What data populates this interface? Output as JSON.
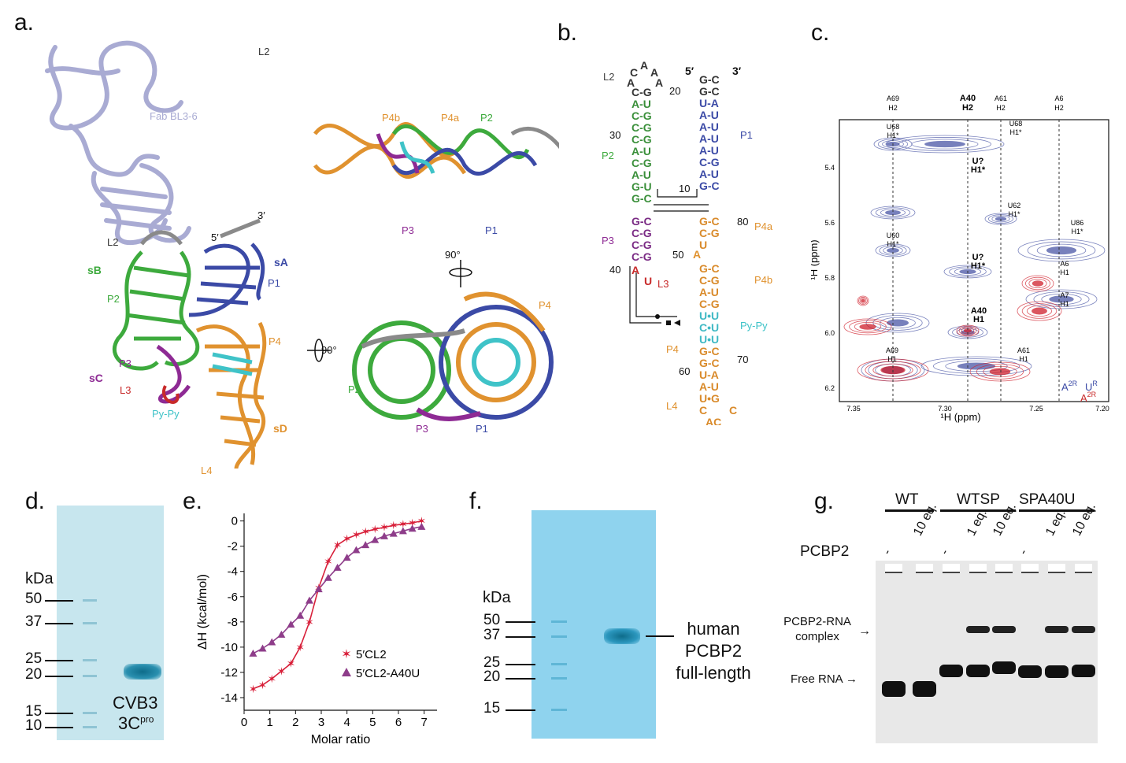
{
  "panels": {
    "a": {
      "label": "a.",
      "texts": [
        "L2",
        "Fab BL3-6",
        "3′",
        "5′",
        "L2",
        "sB",
        "sA",
        "P2",
        "P1",
        "P3",
        "P4",
        "sC",
        "L3",
        "Py-Py",
        "sD",
        "L4",
        "90°"
      ],
      "top_texts": [
        "P4b",
        "P4a",
        "P2",
        "P3",
        "P1",
        "90°"
      ],
      "bottom_texts": [
        "P4",
        "P2",
        "P3",
        "P1"
      ]
    },
    "b": {
      "label": "b.",
      "left_5p": [
        "C",
        "A",
        "A",
        "A",
        "A"
      ],
      "stem_left": [
        "C-G",
        "A-U",
        "C-G",
        "C-G",
        "C-G",
        "A-U",
        "C-G",
        "A-U",
        "G-U",
        "G-C"
      ],
      "stem_right": [
        "G-C",
        "G-C",
        "U-A",
        "A-U",
        "A-U",
        "A-U",
        "A-U",
        "C-G",
        "A-U",
        "G-C"
      ],
      "p3": [
        "G-C",
        "C-G",
        "C-G",
        "C-G",
        "A",
        "U"
      ],
      "p4": [
        "G-C",
        "C-G",
        "U",
        "A",
        "G-C",
        "C-G",
        "A-U",
        "C-G",
        "U•U",
        "C•U",
        "U•U",
        "G-C",
        "G-C",
        "U-A",
        "A-U",
        "U•G",
        "C",
        "AC",
        "C"
      ],
      "numbers": [
        "20",
        "30",
        "10",
        "80",
        "50",
        "40",
        "70",
        "60"
      ],
      "labels": [
        "L2",
        "5′",
        "3′",
        "P1",
        "P2",
        "P3",
        "L3",
        "P4a",
        "P4b",
        "Py-Py",
        "P4",
        "L4",
        "A"
      ]
    },
    "c": {
      "label": "c.",
      "columns": [
        {
          "name": "A69",
          "sub": "H2",
          "bold": false
        },
        {
          "name": "A40",
          "sub": "H2",
          "bold": true
        },
        {
          "name": "A61",
          "sub": "H2",
          "bold": false
        },
        {
          "name": "A6",
          "sub": "H2",
          "bold": false
        }
      ],
      "peaks": [
        "U68 H1*",
        "U68 H1*",
        "U? H1*",
        "U62 H1*",
        "U60 H1*",
        "U86 H1*",
        "U? H1*",
        "A6 H1",
        "A7 H1",
        "A40 H1",
        "A69 H1",
        "A61 H1"
      ],
      "xlabel": "¹H (ppm)",
      "ylabel": "¹H (ppm)",
      "xticks": [
        "7.35",
        "7.30",
        "7.25",
        "7.20"
      ],
      "yticks": [
        "5.4",
        "5.6",
        "5.8",
        "6.0",
        "6.2"
      ],
      "legend": {
        "a_blue": "A",
        "a_blue_sup": "2R",
        "u_blue": "U",
        "u_blue_sup": "R",
        "a_red": "A",
        "a_red_sup": "2R"
      },
      "colors": {
        "blue": "#4a56a6",
        "red": "#d0202c"
      }
    },
    "d": {
      "label": "d.",
      "unit": "kDa",
      "markers": [
        "50",
        "37",
        "25",
        "20",
        "15",
        "10"
      ],
      "band_label": "CVB3",
      "band_label2": "3C",
      "band_label2_sup": "pro"
    },
    "e": {
      "label": "e."
    },
    "f": {
      "label": "f.",
      "unit": "kDa",
      "markers": [
        "50",
        "37",
        "25",
        "20",
        "15"
      ],
      "annotation": [
        "human",
        "PCBP2",
        "full-length"
      ]
    },
    "g": {
      "label": "g.",
      "groups": [
        "WT",
        "WTSP",
        "SPA40U"
      ],
      "row_label": "PCBP2",
      "lanes": [
        "-",
        "10 eq.",
        "-",
        "1 eq.",
        "10 eq.",
        "-",
        "1 eq.",
        "10 eq."
      ],
      "complex_label": [
        "PCBP2-RNA",
        "complex"
      ],
      "free_label": "Free RNA"
    }
  },
  "chart_data": {
    "type": "scatter",
    "xlabel": "Molar ratio",
    "ylabel": "ΔH (kcal/mol)",
    "xlim": [
      0,
      7.5
    ],
    "ylim": [
      -15,
      0.6
    ],
    "xticks": [
      0,
      1,
      2,
      3,
      4,
      5,
      6,
      7
    ],
    "yticks": [
      0,
      -2,
      -4,
      -6,
      -8,
      -10,
      -12,
      -14
    ],
    "legend_position": "bottom-right",
    "series": [
      {
        "name": "5′CL2",
        "marker": "star",
        "color": "#d8203a",
        "x": [
          0.35,
          0.72,
          1.08,
          1.45,
          1.82,
          2.18,
          2.54,
          2.9,
          3.27,
          3.63,
          4.0,
          4.36,
          4.72,
          5.09,
          5.45,
          5.81,
          6.18,
          6.54,
          6.9
        ],
        "y": [
          -13.3,
          -13.0,
          -12.5,
          -11.9,
          -11.3,
          -10.0,
          -8.0,
          -5.3,
          -3.2,
          -1.9,
          -1.4,
          -1.1,
          -0.85,
          -0.65,
          -0.5,
          -0.35,
          -0.25,
          -0.15,
          0.0
        ]
      },
      {
        "name": "5′CL2-A40U",
        "marker": "triangle",
        "color": "#8e3d8a",
        "x": [
          0.35,
          0.72,
          1.08,
          1.45,
          1.82,
          2.18,
          2.54,
          2.9,
          3.27,
          3.63,
          4.0,
          4.36,
          4.72,
          5.09,
          5.45,
          5.81,
          6.18,
          6.54,
          6.9
        ],
        "y": [
          -10.5,
          -10.1,
          -9.6,
          -9.0,
          -8.2,
          -7.5,
          -6.3,
          -5.4,
          -4.5,
          -3.7,
          -2.9,
          -2.3,
          -1.9,
          -1.5,
          -1.2,
          -1.0,
          -0.8,
          -0.6,
          -0.45
        ]
      }
    ]
  }
}
